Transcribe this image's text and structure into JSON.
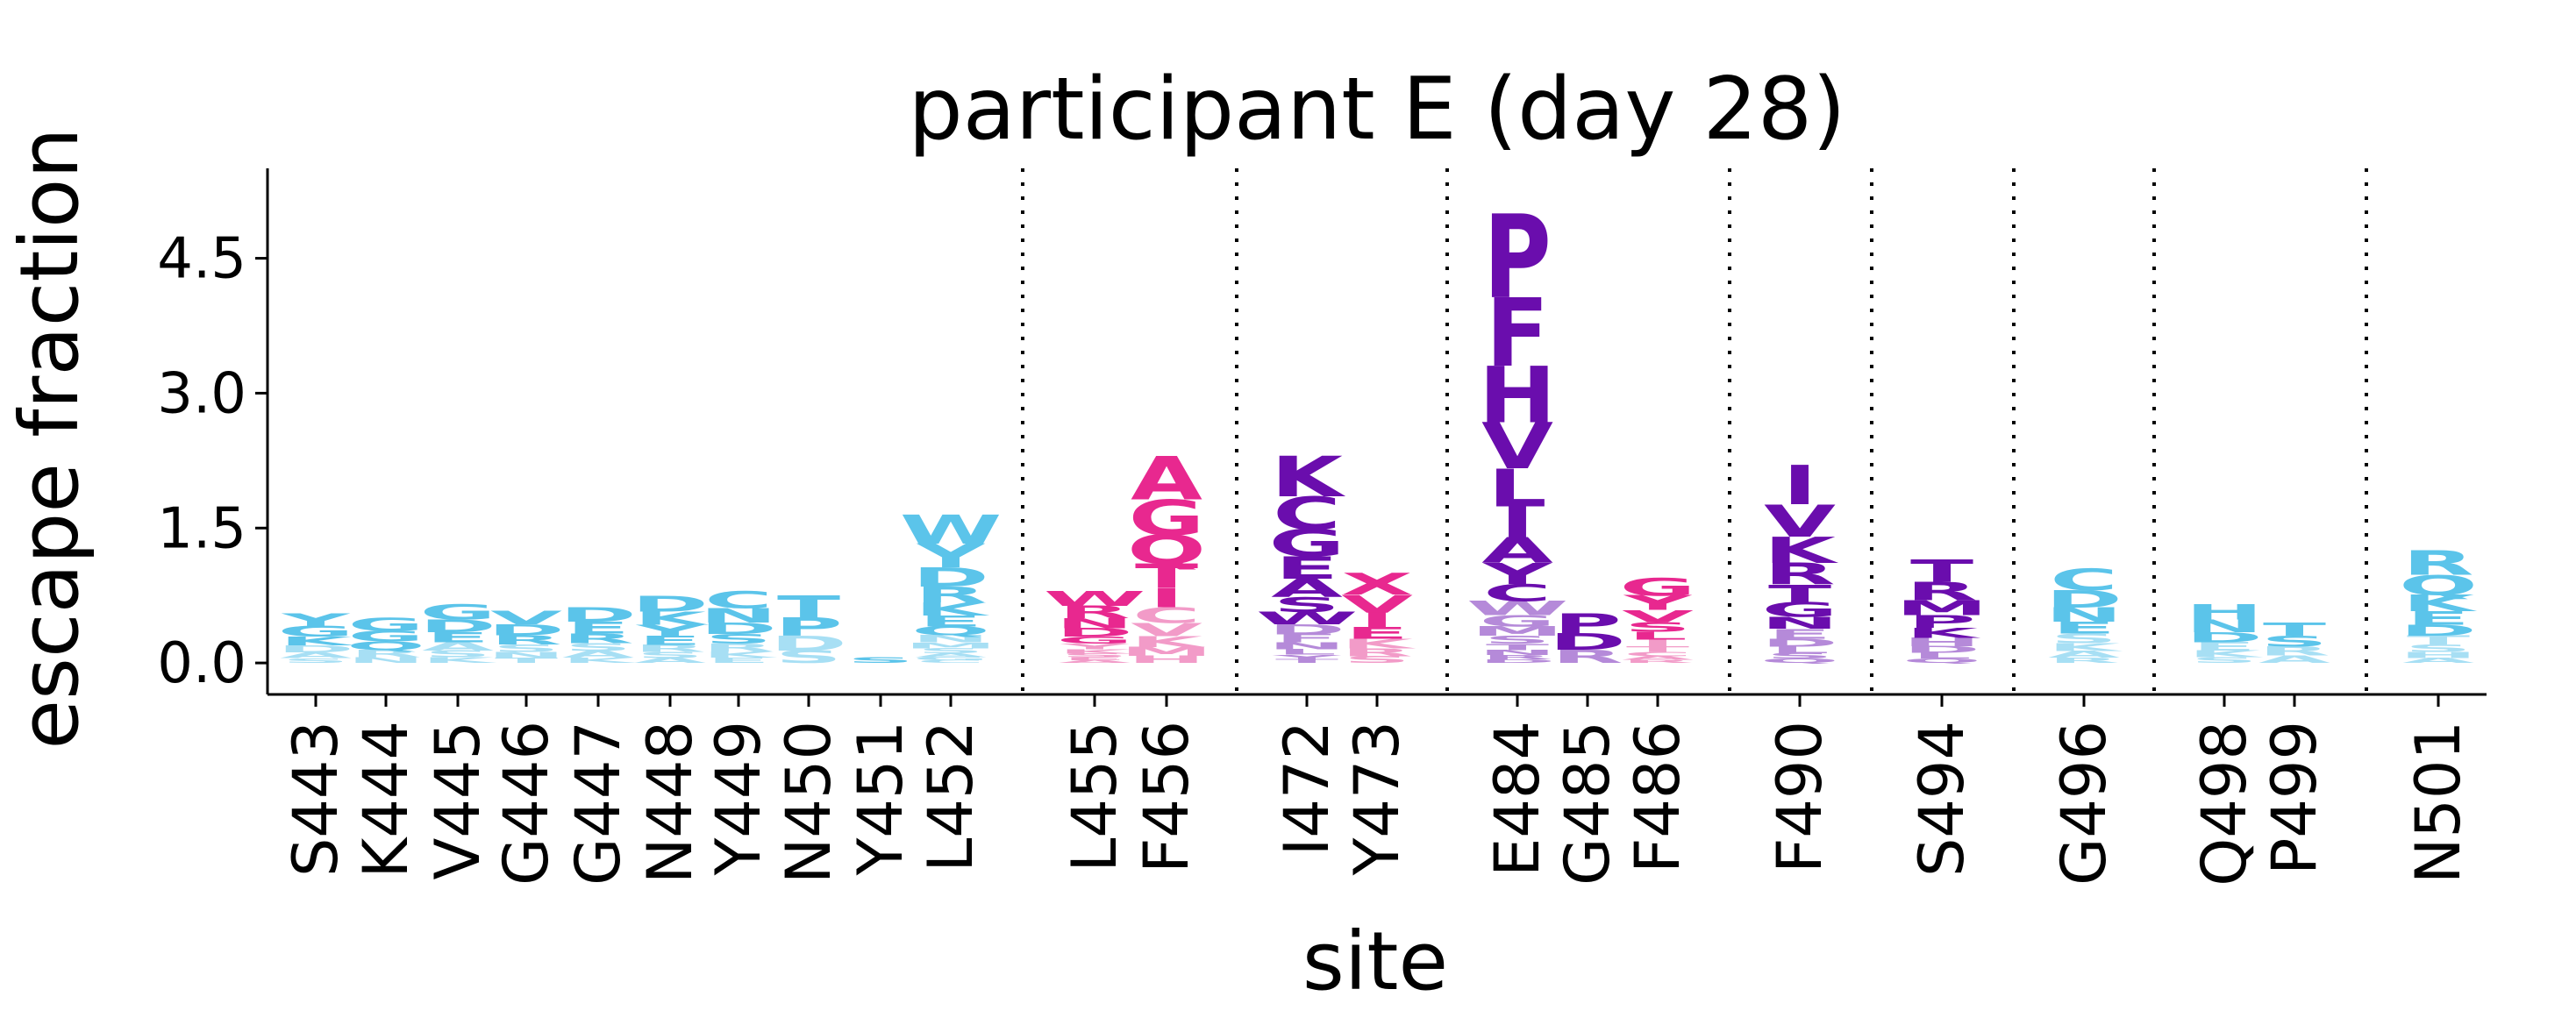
{
  "chart_data": {
    "type": "logo",
    "title": "participant E (day 28)",
    "xlabel": "site",
    "ylabel": "escape fraction",
    "ylim": [
      -0.35,
      5.5
    ],
    "yticks": [
      0.0,
      1.5,
      3.0,
      4.5
    ],
    "ytick_labels": [
      "0.0",
      "1.5",
      "3.0",
      "4.5"
    ],
    "group_separators": "dotted vertical lines",
    "colors": {
      "light_blue": "#5bc4ea",
      "pink": "#e8288f",
      "purple": "#6a0dad"
    },
    "groups": [
      [
        "S443",
        "K444",
        "V445",
        "G446",
        "G447",
        "N448",
        "Y449",
        "N450",
        "Y451",
        "L452"
      ],
      [
        "L455",
        "F456"
      ],
      [
        "I472",
        "Y473"
      ],
      [
        "E484",
        "G485",
        "F486"
      ],
      [
        "F490"
      ],
      [
        "S494"
      ],
      [
        "G496"
      ],
      [
        "Q498",
        "P499"
      ],
      [
        "N501"
      ]
    ],
    "sites": [
      {
        "site": "S443",
        "color": "#5bc4ea",
        "total": 0.55,
        "letters": [
          "Y",
          "G",
          "K",
          "D",
          "A",
          "S"
        ]
      },
      {
        "site": "K444",
        "color": "#5bc4ea",
        "total": 0.5,
        "letters": [
          "G",
          "G",
          "Q",
          "R",
          "N"
        ]
      },
      {
        "site": "V445",
        "color": "#5bc4ea",
        "total": 0.65,
        "letters": [
          "G",
          "D",
          "E",
          "A",
          "S",
          "K"
        ]
      },
      {
        "site": "G446",
        "color": "#5bc4ea",
        "total": 0.58,
        "letters": [
          "V",
          "D",
          "R",
          "S",
          "N",
          "T"
        ]
      },
      {
        "site": "G447",
        "color": "#5bc4ea",
        "total": 0.62,
        "letters": [
          "D",
          "E",
          "R",
          "S",
          "A",
          "K"
        ]
      },
      {
        "site": "N448",
        "color": "#5bc4ea",
        "total": 0.75,
        "letters": [
          "D",
          "K",
          "Y",
          "E",
          "R",
          "S",
          "A"
        ]
      },
      {
        "site": "Y449",
        "color": "#5bc4ea",
        "total": 0.8,
        "letters": [
          "C",
          "N",
          "D",
          "S",
          "R",
          "K",
          "E"
        ]
      },
      {
        "site": "N450",
        "color": "#5bc4ea",
        "total": 0.75,
        "letters": [
          "T",
          "P",
          "D",
          "S"
        ]
      },
      {
        "site": "Y451",
        "color": "#5bc4ea",
        "total": 0.06,
        "letters": [
          "S"
        ]
      },
      {
        "site": "L452",
        "color": "#5bc4ea",
        "total": 1.65,
        "letters": [
          "W",
          "Y",
          "D",
          "R",
          "K",
          "E",
          "Q",
          "N",
          "M",
          "S",
          "A",
          "G",
          "C"
        ]
      },
      {
        "site": "L455",
        "color": "#e8288f",
        "total": 0.8,
        "letters": [
          "W",
          "R",
          "N",
          "D",
          "G",
          "Y",
          "K",
          "S",
          "E",
          "A"
        ]
      },
      {
        "site": "F456",
        "color": "#e8288f",
        "total": 2.3,
        "letters": [
          "A",
          "G",
          "Q",
          "T",
          "I",
          "C",
          "V",
          "K",
          "M",
          "H"
        ]
      },
      {
        "site": "I472",
        "color": "#6a0dad",
        "total": 2.3,
        "letters": [
          "K",
          "C",
          "G",
          "E",
          "A",
          "S",
          "W",
          "D",
          "F",
          "N",
          "L",
          "Y",
          "T"
        ]
      },
      {
        "site": "Y473",
        "color": "#e8288f",
        "total": 1.0,
        "letters": [
          "X",
          "V",
          "I",
          "E",
          "K",
          "R",
          "S"
        ]
      },
      {
        "site": "E484",
        "color": "#6a0dad",
        "total": 5.0,
        "letters": [
          "P",
          "F",
          "H",
          "V",
          "L",
          "I",
          "A",
          "Y",
          "C",
          "W",
          "G",
          "M",
          "S",
          "T",
          "N",
          "R",
          "D"
        ]
      },
      {
        "site": "G485",
        "color": "#6a0dad",
        "total": 0.55,
        "letters": [
          "P",
          "D",
          "R"
        ]
      },
      {
        "site": "F486",
        "color": "#e8288f",
        "total": 0.95,
        "letters": [
          "G",
          "Y",
          "V",
          "S",
          "L",
          "I",
          "T",
          "C",
          "A",
          "R"
        ]
      },
      {
        "site": "F490",
        "color": "#6a0dad",
        "total": 2.2,
        "letters": [
          "I",
          "V",
          "K",
          "R",
          "T",
          "G",
          "N",
          "E",
          "D",
          "L",
          "S",
          "Q"
        ]
      },
      {
        "site": "S494",
        "color": "#6a0dad",
        "total": 1.15,
        "letters": [
          "T",
          "R",
          "M",
          "P",
          "K",
          "H",
          "D",
          "L",
          "Q"
        ]
      },
      {
        "site": "G496",
        "color": "#5bc4ea",
        "total": 1.05,
        "letters": [
          "C",
          "D",
          "N",
          "E",
          "S",
          "K",
          "A",
          "R"
        ]
      },
      {
        "site": "Q498",
        "color": "#5bc4ea",
        "total": 0.65,
        "letters": [
          "H",
          "N",
          "D",
          "E",
          "K",
          "S"
        ]
      },
      {
        "site": "P499",
        "color": "#5bc4ea",
        "total": 0.45,
        "letters": [
          "T",
          "S",
          "R",
          "A"
        ]
      },
      {
        "site": "N501",
        "color": "#5bc4ea",
        "total": 1.25,
        "letters": [
          "R",
          "Q",
          "K",
          "E",
          "D",
          "T",
          "S",
          "H",
          "A"
        ]
      }
    ]
  }
}
